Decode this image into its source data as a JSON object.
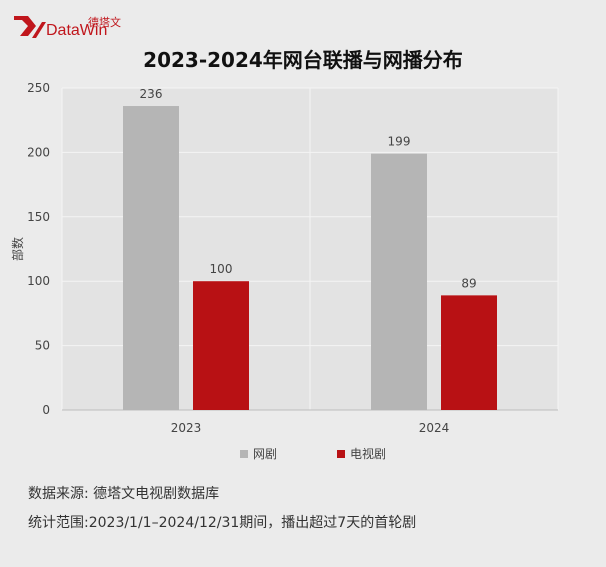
{
  "logo": {
    "cn": "德塔文",
    "en": "DataWin"
  },
  "title": "2023-2024年网台联播与网播分布",
  "chart_data": {
    "type": "bar",
    "title": "2023-2024年网台联播与网播分布",
    "categories": [
      "2023",
      "2024"
    ],
    "series": [
      {
        "name": "网剧",
        "values": [
          236,
          199
        ],
        "color": "#b5b5b5"
      },
      {
        "name": "电视剧",
        "values": [
          100,
          89
        ],
        "color": "#b81114"
      }
    ],
    "ylabel": "部数",
    "ylim": [
      0,
      250
    ],
    "yticks": [
      0,
      50,
      100,
      150,
      200,
      250
    ],
    "grid": true,
    "legend": "bottom"
  },
  "footer": {
    "source": "数据来源: 德塔文电视剧数据库",
    "scope": "统计范围:2023/1/1–2024/12/31期间，播出超过7天的首轮剧"
  }
}
